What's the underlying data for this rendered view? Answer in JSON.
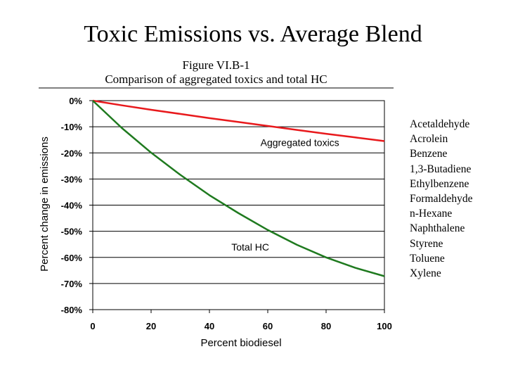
{
  "slide": {
    "title": "Toxic Emissions vs. Average Blend"
  },
  "figure": {
    "label": "Figure VI.B-1",
    "subtitle": "Comparison of aggregated toxics and total HC"
  },
  "toxics_list": [
    "Acetaldehyde",
    "Acrolein",
    "Benzene",
    "1,3-Butadiene",
    "Ethylbenzene",
    "Formaldehyde",
    "n-Hexane",
    "Naphthalene",
    "Styrene",
    "Toluene",
    "Xylene"
  ],
  "chart_data": {
    "type": "line",
    "title": "Figure VI.B-1",
    "subtitle": "Comparison of aggregated toxics and total HC",
    "xlabel": "Percent biodiesel",
    "ylabel": "Percent change in emissions",
    "xlim": [
      0,
      100
    ],
    "ylim": [
      -80,
      0
    ],
    "x_ticks": [
      0,
      20,
      40,
      60,
      80,
      100
    ],
    "y_ticks": [
      0,
      -10,
      -20,
      -30,
      -40,
      -50,
      -60,
      -70,
      -80
    ],
    "y_tick_labels": [
      "0%",
      "-10%",
      "-20%",
      "-30%",
      "-40%",
      "-50%",
      "-60%",
      "-70%",
      "-80%"
    ],
    "grid": "horizontal",
    "series": [
      {
        "name": "Aggregated toxics",
        "color": "#e8191c",
        "x": [
          0,
          10,
          20,
          30,
          40,
          50,
          60,
          70,
          80,
          90,
          100
        ],
        "y": [
          0,
          -1.8,
          -3.5,
          -5.1,
          -6.7,
          -8.2,
          -9.7,
          -11.2,
          -12.7,
          -14.1,
          -15.5
        ]
      },
      {
        "name": "Total HC",
        "color": "#1f7a1f",
        "x": [
          0,
          10,
          20,
          30,
          40,
          50,
          60,
          70,
          80,
          90,
          100
        ],
        "y": [
          0,
          -10.5,
          -19.9,
          -28.4,
          -36.2,
          -43.1,
          -49.5,
          -55.2,
          -60.0,
          -64.0,
          -67.2
        ]
      }
    ],
    "annotations": [
      {
        "text": "Aggregated toxics",
        "x": 71,
        "y": -16
      },
      {
        "text": "Total HC",
        "x": 54,
        "y": -56
      }
    ]
  }
}
